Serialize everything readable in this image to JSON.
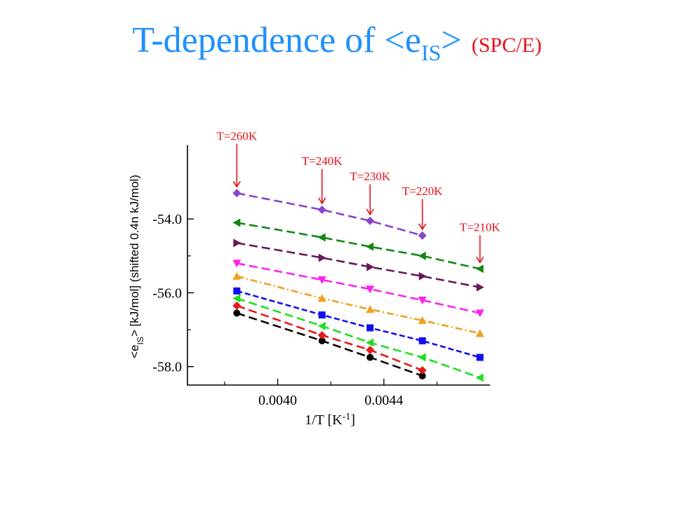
{
  "title": {
    "main_pre": "T-dependence of <e",
    "main_sub": "IS",
    "main_post": ">",
    "note": "(SPC/E)"
  },
  "chart_data": {
    "type": "line",
    "title": "",
    "xlabel_pre": "1/T   [K",
    "xlabel_sup": "-1",
    "xlabel_post": "]",
    "ylabel_pre": "<e",
    "ylabel_sub": "IS",
    "ylabel_post": "> [kJ/mol] (shifted 0.4n kJ/mol)",
    "xlim": [
      0.00366,
      0.0048
    ],
    "ylim": [
      -58.5,
      -52.0
    ],
    "xticks": [
      {
        "value": 0.004,
        "label": "0.0040"
      },
      {
        "value": 0.0044,
        "label": "0.0044"
      }
    ],
    "yticks": [
      {
        "value": -54.0,
        "label": "-54.0"
      },
      {
        "value": -56.0,
        "label": "-56.0"
      },
      {
        "value": -58.0,
        "label": "-58.0"
      }
    ],
    "series": [
      {
        "color": "#000000",
        "marker": "circle",
        "dash": "12,6",
        "x": [
          0.003846,
          0.004167,
          0.004348,
          0.004545
        ],
        "y": [
          -56.55,
          -57.3,
          -57.75,
          -58.25
        ]
      },
      {
        "color": "#e41a1c",
        "marker": "diamond",
        "dash": "12,6",
        "x": [
          0.003846,
          0.004167,
          0.004348,
          0.004545
        ],
        "y": [
          -56.35,
          -57.15,
          -57.55,
          -58.1
        ]
      },
      {
        "color": "#22dd22",
        "marker": "triangle-left",
        "dash": "12,6",
        "x": [
          0.003846,
          0.004167,
          0.004348,
          0.004545,
          0.004762
        ],
        "y": [
          -56.15,
          -56.9,
          -57.35,
          -57.75,
          -58.3
        ]
      },
      {
        "color": "#1010ee",
        "marker": "square",
        "dash": "8,4",
        "x": [
          0.003846,
          0.004167,
          0.004348,
          0.004545,
          0.004762
        ],
        "y": [
          -55.95,
          -56.6,
          -56.95,
          -57.3,
          -57.75
        ]
      },
      {
        "color": "#f0a020",
        "marker": "triangle-up",
        "dash": "10,4,2,4",
        "x": [
          0.003846,
          0.004167,
          0.004348,
          0.004545,
          0.004762
        ],
        "y": [
          -55.55,
          -56.15,
          -56.45,
          -56.75,
          -57.1
        ]
      },
      {
        "color": "#ff22ee",
        "marker": "triangle-down",
        "dash": "12,6",
        "x": [
          0.003846,
          0.004167,
          0.004348,
          0.004545,
          0.004762
        ],
        "y": [
          -55.2,
          -55.65,
          -55.9,
          -56.2,
          -56.55
        ]
      },
      {
        "color": "#661a55",
        "marker": "triangle-right",
        "dash": "12,6",
        "x": [
          0.003846,
          0.004167,
          0.004348,
          0.004545,
          0.004762
        ],
        "y": [
          -54.65,
          -55.05,
          -55.3,
          -55.55,
          -55.85
        ]
      },
      {
        "color": "#118811",
        "marker": "triangle-left",
        "dash": "12,6",
        "x": [
          0.003846,
          0.004167,
          0.004348,
          0.004545,
          0.004762
        ],
        "y": [
          -54.1,
          -54.5,
          -54.75,
          -55.0,
          -55.35
        ]
      },
      {
        "color": "#8844cc",
        "marker": "diamond",
        "dash": "12,6",
        "x": [
          0.003846,
          0.004167,
          0.004348,
          0.004545
        ],
        "y": [
          -53.3,
          -53.75,
          -54.05,
          -54.45
        ]
      }
    ],
    "annotations": [
      {
        "text": "T=260K",
        "x": 0.003846,
        "y": -53.3
      },
      {
        "text": "T=240K",
        "x": 0.004167,
        "y": -53.75
      },
      {
        "text": "T=230K",
        "x": 0.004348,
        "y": -54.05
      },
      {
        "text": "T=220K",
        "x": 0.004545,
        "y": -54.45
      },
      {
        "text": "T=210K",
        "x": 0.004762,
        "y": -55.35
      }
    ],
    "annotation_color": "#e8101a"
  }
}
